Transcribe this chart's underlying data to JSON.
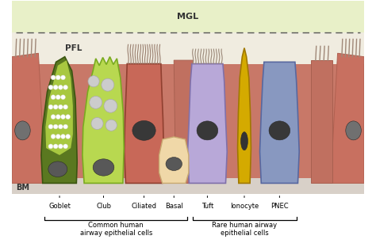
{
  "mgl_label": "MGL",
  "pfl_label": "PFL",
  "bm_label": "BM",
  "cell_labels": [
    "Goblet",
    "Club",
    "Ciliated",
    "Basal",
    "Tuft",
    "Ionocyte",
    "PNEC"
  ],
  "group_common": "Common human\nairway epithelial cells",
  "group_rare": "Rare human airway\nepithelial cells",
  "bg_top_color": "#e8f0c8",
  "bg_pfl_color": "#f0ece0",
  "bg_wall_color": "#c87868",
  "bg_base_color": "#e8ddd0",
  "goblet_dark": "#5a7820",
  "goblet_light": "#a8c840",
  "club_color": "#b8d850",
  "ciliated_color": "#c86858",
  "basal_color": "#f0d8a8",
  "tuft_color": "#b8a8d8",
  "ionocyte_color": "#d4aa00",
  "pnec_color": "#8898c0",
  "bg_cell_color": "#c07870",
  "nucleus_dark": "#484848",
  "nucleus_med": "#585858",
  "cilia_color": "#a89080",
  "figsize": [
    4.74,
    3.12
  ],
  "dpi": 100
}
